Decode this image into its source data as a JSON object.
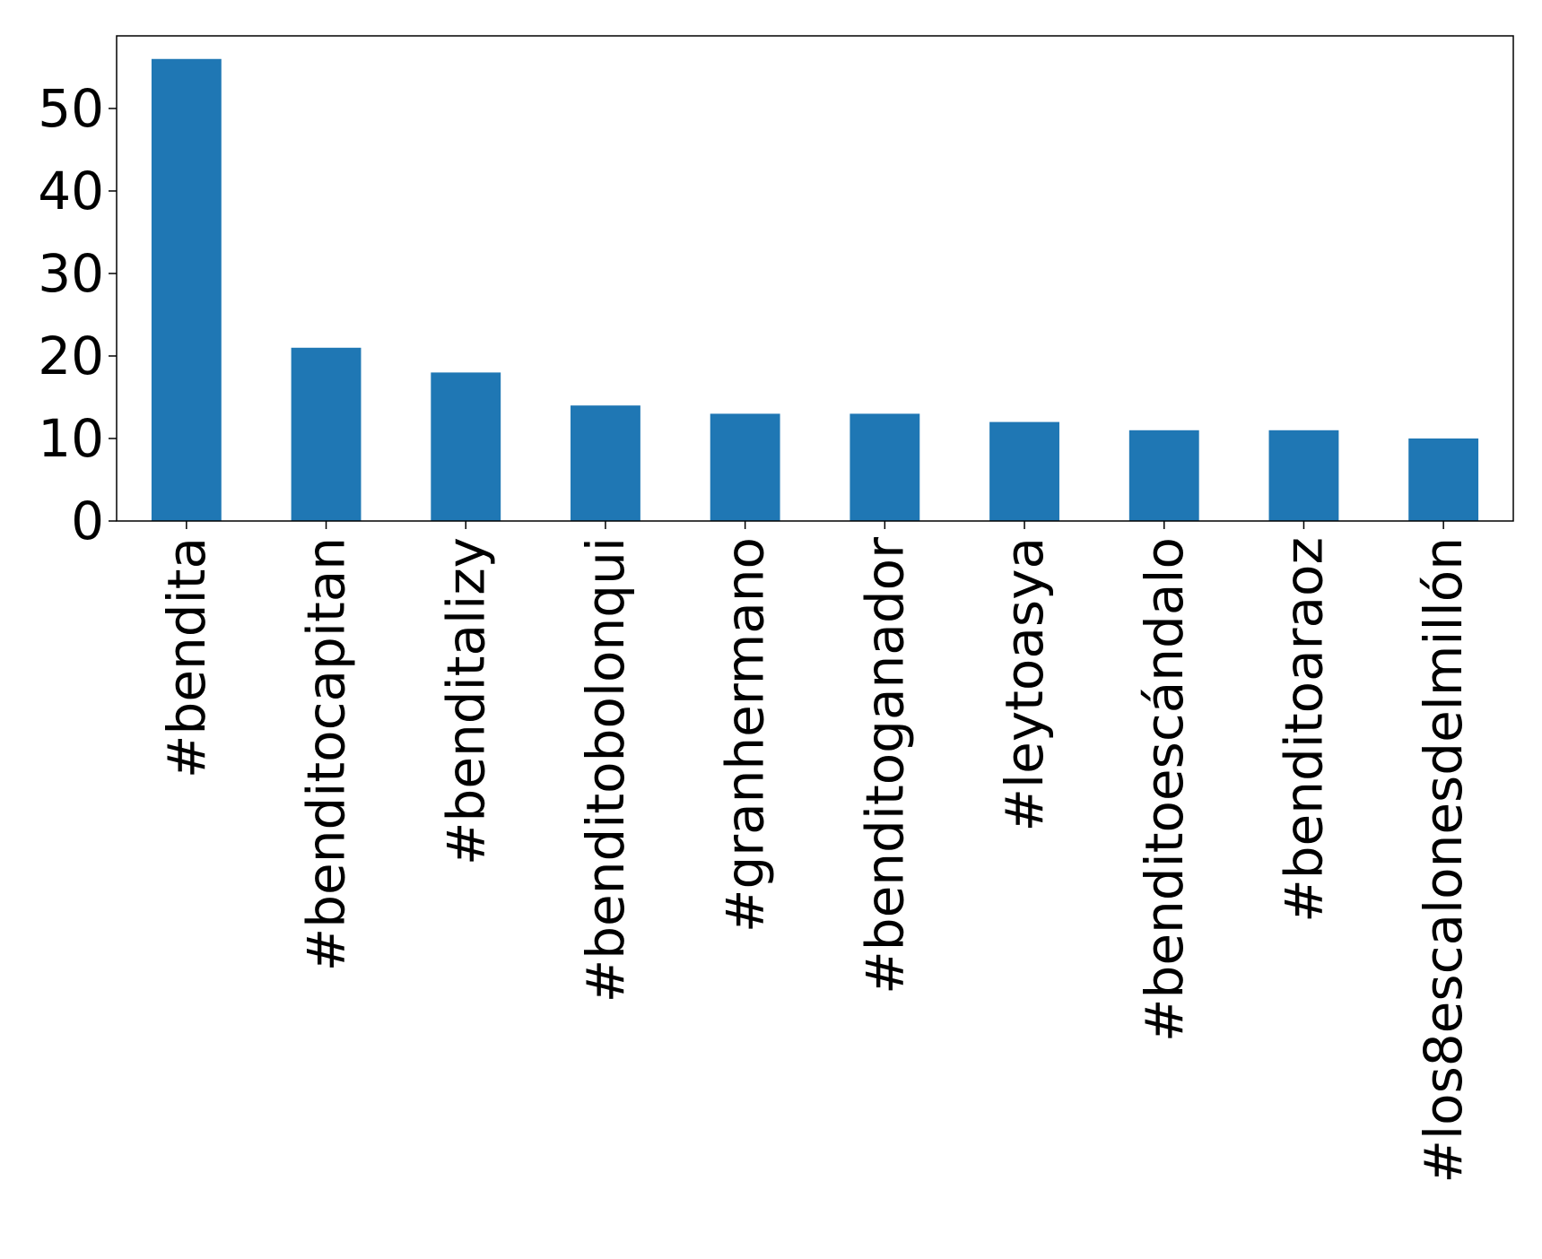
{
  "chart_data": {
    "type": "bar",
    "categories": [
      "#bendita",
      "#benditocapitan",
      "#benditalizy",
      "#benditobolonqui",
      "#granhermano",
      "#benditoganador",
      "#leytoasya",
      "#benditoescándalo",
      "#benditoaraoz",
      "#los8escalonesdelmillón"
    ],
    "values": [
      56,
      21,
      18,
      14,
      13,
      13,
      12,
      11,
      11,
      10
    ],
    "color": "#1f77b4",
    "ylim": [
      0,
      58.8
    ],
    "yticks": [
      0,
      10,
      20,
      30,
      40,
      50
    ],
    "grid": false
  }
}
